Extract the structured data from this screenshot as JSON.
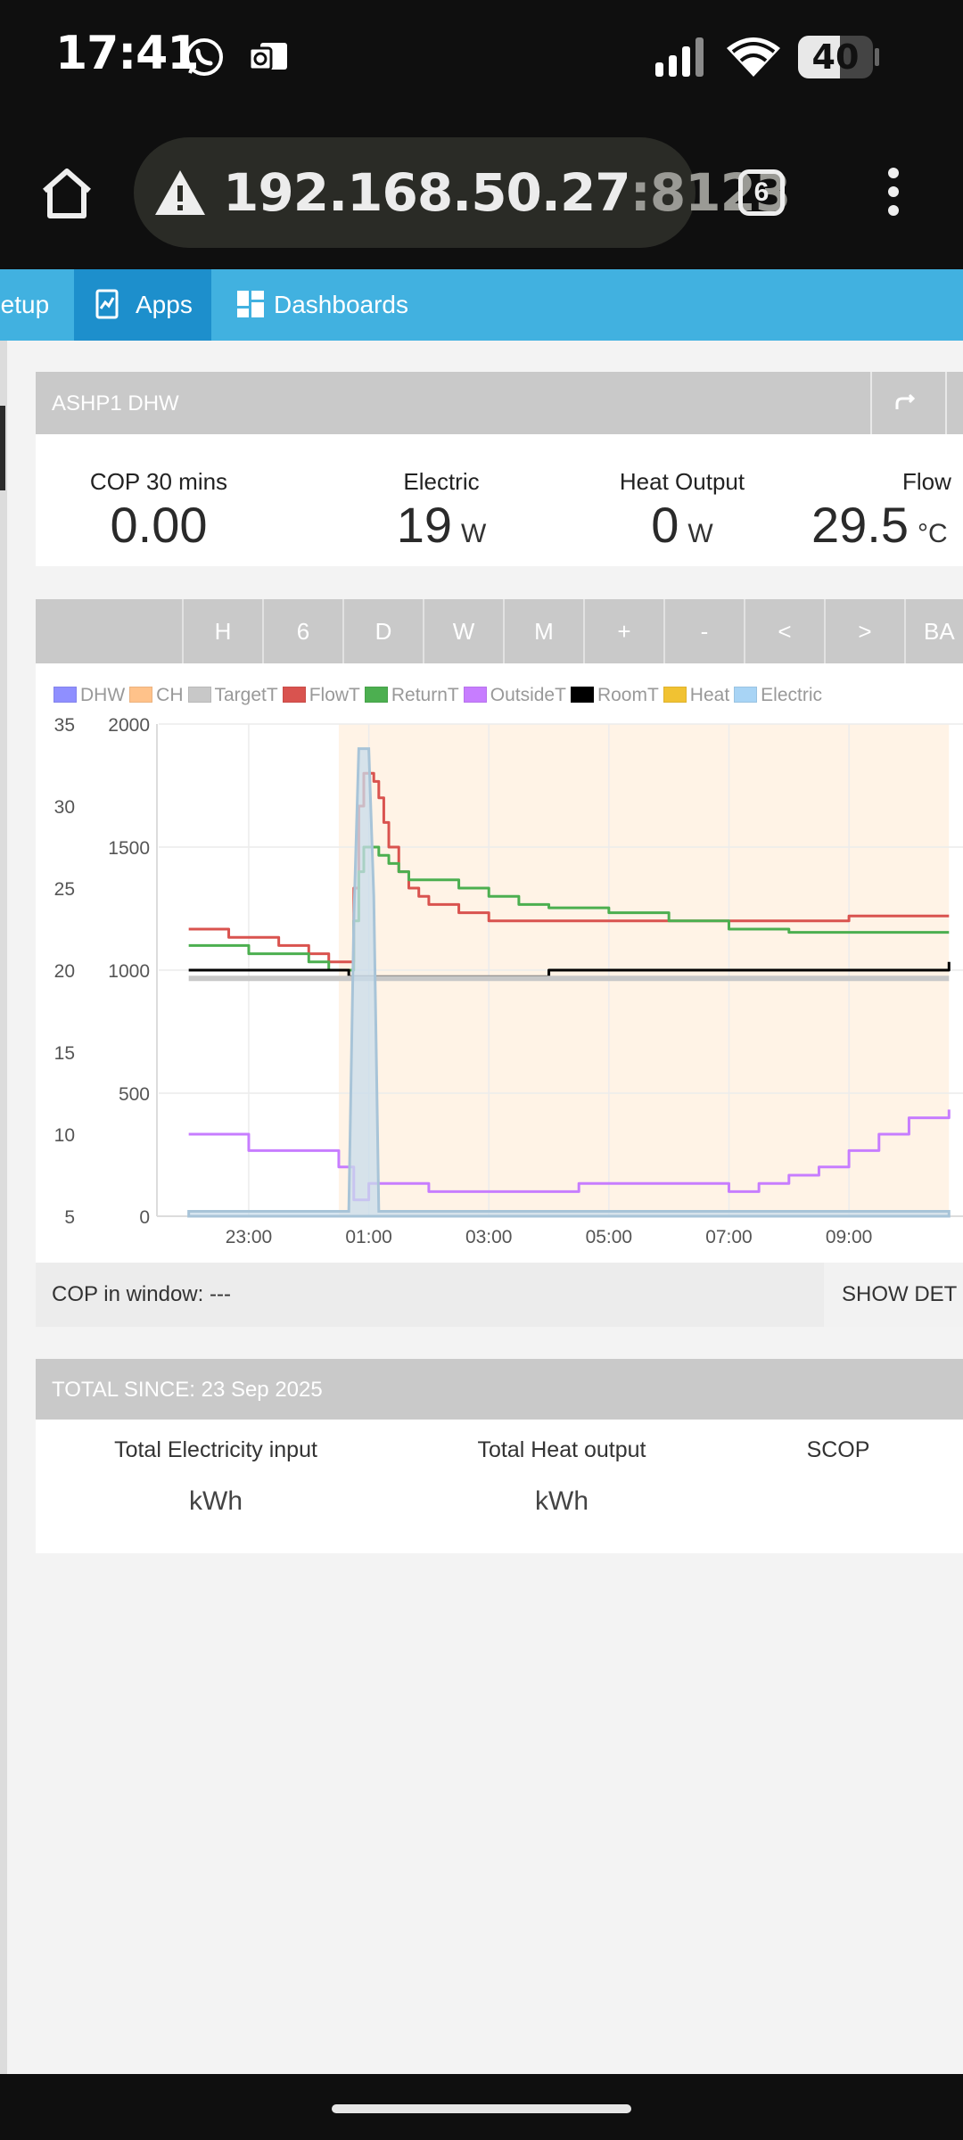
{
  "status_bar": {
    "time": "17:41",
    "battery_level": "40",
    "icons": [
      "whatsapp-icon",
      "outlook-icon",
      "signal-icon",
      "wifi-icon",
      "battery-icon"
    ]
  },
  "browser": {
    "host": "192.168.50.27",
    "port": ":8123",
    "tab_count": "6",
    "icons": [
      "home-icon",
      "warning-icon",
      "more-vert-icon"
    ]
  },
  "toolbar": {
    "setup_label": "Setup",
    "apps_label": "Apps",
    "dashboards_label": "Dashboards",
    "accent_color": "#41b1e0",
    "active_color": "#1d8fcc"
  },
  "panel": {
    "title": "ASHP1 DHW",
    "share_icon": "share-icon",
    "stats": {
      "cop": {
        "label": "COP 30 mins",
        "value": "0.00"
      },
      "electric": {
        "label": "Electric",
        "value": "19",
        "unit": "W"
      },
      "heat": {
        "label": "Heat Output",
        "value": "0",
        "unit": "W"
      },
      "flow": {
        "label": "Flow",
        "value": "29.5",
        "unit": "°C"
      }
    }
  },
  "range_buttons": [
    "H",
    "6",
    "D",
    "W",
    "M",
    "+",
    "-",
    "<",
    ">",
    "BA"
  ],
  "chart_data": {
    "type": "line",
    "legend": [
      {
        "name": "DHW",
        "color": "#8f8fff"
      },
      {
        "name": "CH",
        "color": "#ffc28a"
      },
      {
        "name": "TargetT",
        "color": "#c8c8c8"
      },
      {
        "name": "FlowT",
        "color": "#d9534f"
      },
      {
        "name": "ReturnT",
        "color": "#4caf50"
      },
      {
        "name": "OutsideT",
        "color": "#c77dff"
      },
      {
        "name": "RoomT",
        "color": "#000000"
      },
      {
        "name": "Heat",
        "color": "#f1c232"
      },
      {
        "name": "Electric",
        "color": "#a8d4f5"
      }
    ],
    "x_ticks": [
      "23:00",
      "01:00",
      "03:00",
      "05:00",
      "07:00",
      "09:00"
    ],
    "y_left_ticks": [
      "35",
      "30",
      "25",
      "20",
      "15",
      "10",
      "5"
    ],
    "y_right_ticks": [
      "2000",
      "1500",
      "1000",
      "500",
      "0"
    ],
    "ylim_left": [
      5,
      35
    ],
    "ylim_right": [
      0,
      2000
    ],
    "dhw_period": {
      "start": "00:30",
      "end": "10:40"
    },
    "series": [
      {
        "name": "FlowT",
        "axis": "left",
        "x": [
          "22:00",
          "22:30",
          "22:40",
          "23:00",
          "23:30",
          "00:00",
          "00:15",
          "00:20",
          "00:40",
          "00:45",
          "00:50",
          "00:55",
          "01:00",
          "01:05",
          "01:10",
          "01:15",
          "01:20",
          "01:30",
          "01:40",
          "01:50",
          "02:00",
          "02:30",
          "03:00",
          "04:00",
          "05:00",
          "06:00",
          "07:00",
          "08:00",
          "09:00",
          "10:00",
          "10:40"
        ],
        "values": [
          22.5,
          22.5,
          22,
          22,
          21.5,
          21,
          21,
          20.5,
          20.5,
          25,
          30,
          32,
          32,
          31.5,
          30.5,
          29,
          27.5,
          26,
          25,
          24.5,
          24,
          23.5,
          23,
          23,
          23,
          23,
          23,
          23,
          23.3,
          23.3,
          23.3
        ]
      },
      {
        "name": "ReturnT",
        "axis": "left",
        "x": [
          "22:00",
          "22:30",
          "23:00",
          "23:30",
          "00:00",
          "00:15",
          "00:20",
          "00:40",
          "00:45",
          "00:50",
          "00:55",
          "01:00",
          "01:10",
          "01:20",
          "01:30",
          "01:40",
          "02:00",
          "02:30",
          "03:00",
          "03:30",
          "04:00",
          "05:00",
          "06:00",
          "07:00",
          "08:00",
          "09:00",
          "10:00",
          "10:40"
        ],
        "values": [
          21.5,
          21.5,
          21,
          21,
          20.5,
          20.5,
          20,
          20,
          23,
          26,
          27.5,
          27.5,
          27,
          26.5,
          26,
          25.5,
          25.5,
          25,
          24.5,
          24,
          23.8,
          23.5,
          23,
          22.5,
          22.3,
          22.3,
          22.3,
          22.3
        ]
      },
      {
        "name": "RoomT",
        "axis": "left",
        "x": [
          "22:00",
          "00:00",
          "00:40",
          "02:00",
          "03:00",
          "04:00",
          "06:00",
          "08:00",
          "10:30",
          "10:40"
        ],
        "values": [
          20,
          20,
          19.6,
          19.6,
          19.6,
          20,
          20,
          20,
          20,
          20.5
        ]
      },
      {
        "name": "TargetT",
        "axis": "left",
        "x": [
          "22:00",
          "10:40"
        ],
        "values": [
          19.5,
          19.5
        ]
      },
      {
        "name": "OutsideT",
        "axis": "left",
        "x": [
          "22:00",
          "22:30",
          "23:00",
          "23:30",
          "00:00",
          "00:30",
          "00:45",
          "01:00",
          "01:30",
          "02:00",
          "02:30",
          "03:00",
          "04:00",
          "04:30",
          "05:00",
          "06:00",
          "07:00",
          "07:30",
          "08:00",
          "08:30",
          "09:00",
          "09:30",
          "10:00",
          "10:40"
        ],
        "values": [
          10,
          10,
          9,
          9,
          9,
          8,
          6,
          7,
          7,
          6.5,
          6.5,
          6.5,
          6.5,
          7,
          7,
          7,
          6.5,
          7,
          7.5,
          8,
          9,
          10,
          11,
          11.5
        ]
      },
      {
        "name": "Electric",
        "axis": "right",
        "x": [
          "22:00",
          "00:40",
          "00:45",
          "00:50",
          "01:00",
          "01:05",
          "01:10",
          "10:40"
        ],
        "values": [
          20,
          20,
          1200,
          1900,
          1900,
          1300,
          20,
          20
        ]
      }
    ]
  },
  "cop_window": {
    "text": "COP in window: ---",
    "button": "SHOW DET"
  },
  "totals": {
    "header": "TOTAL SINCE: 23 Sep 2025",
    "electricity": {
      "label": "Total Electricity input",
      "unit": "kWh"
    },
    "heat": {
      "label": "Total Heat output",
      "unit": "kWh"
    },
    "scop": {
      "label": "SCOP"
    }
  }
}
